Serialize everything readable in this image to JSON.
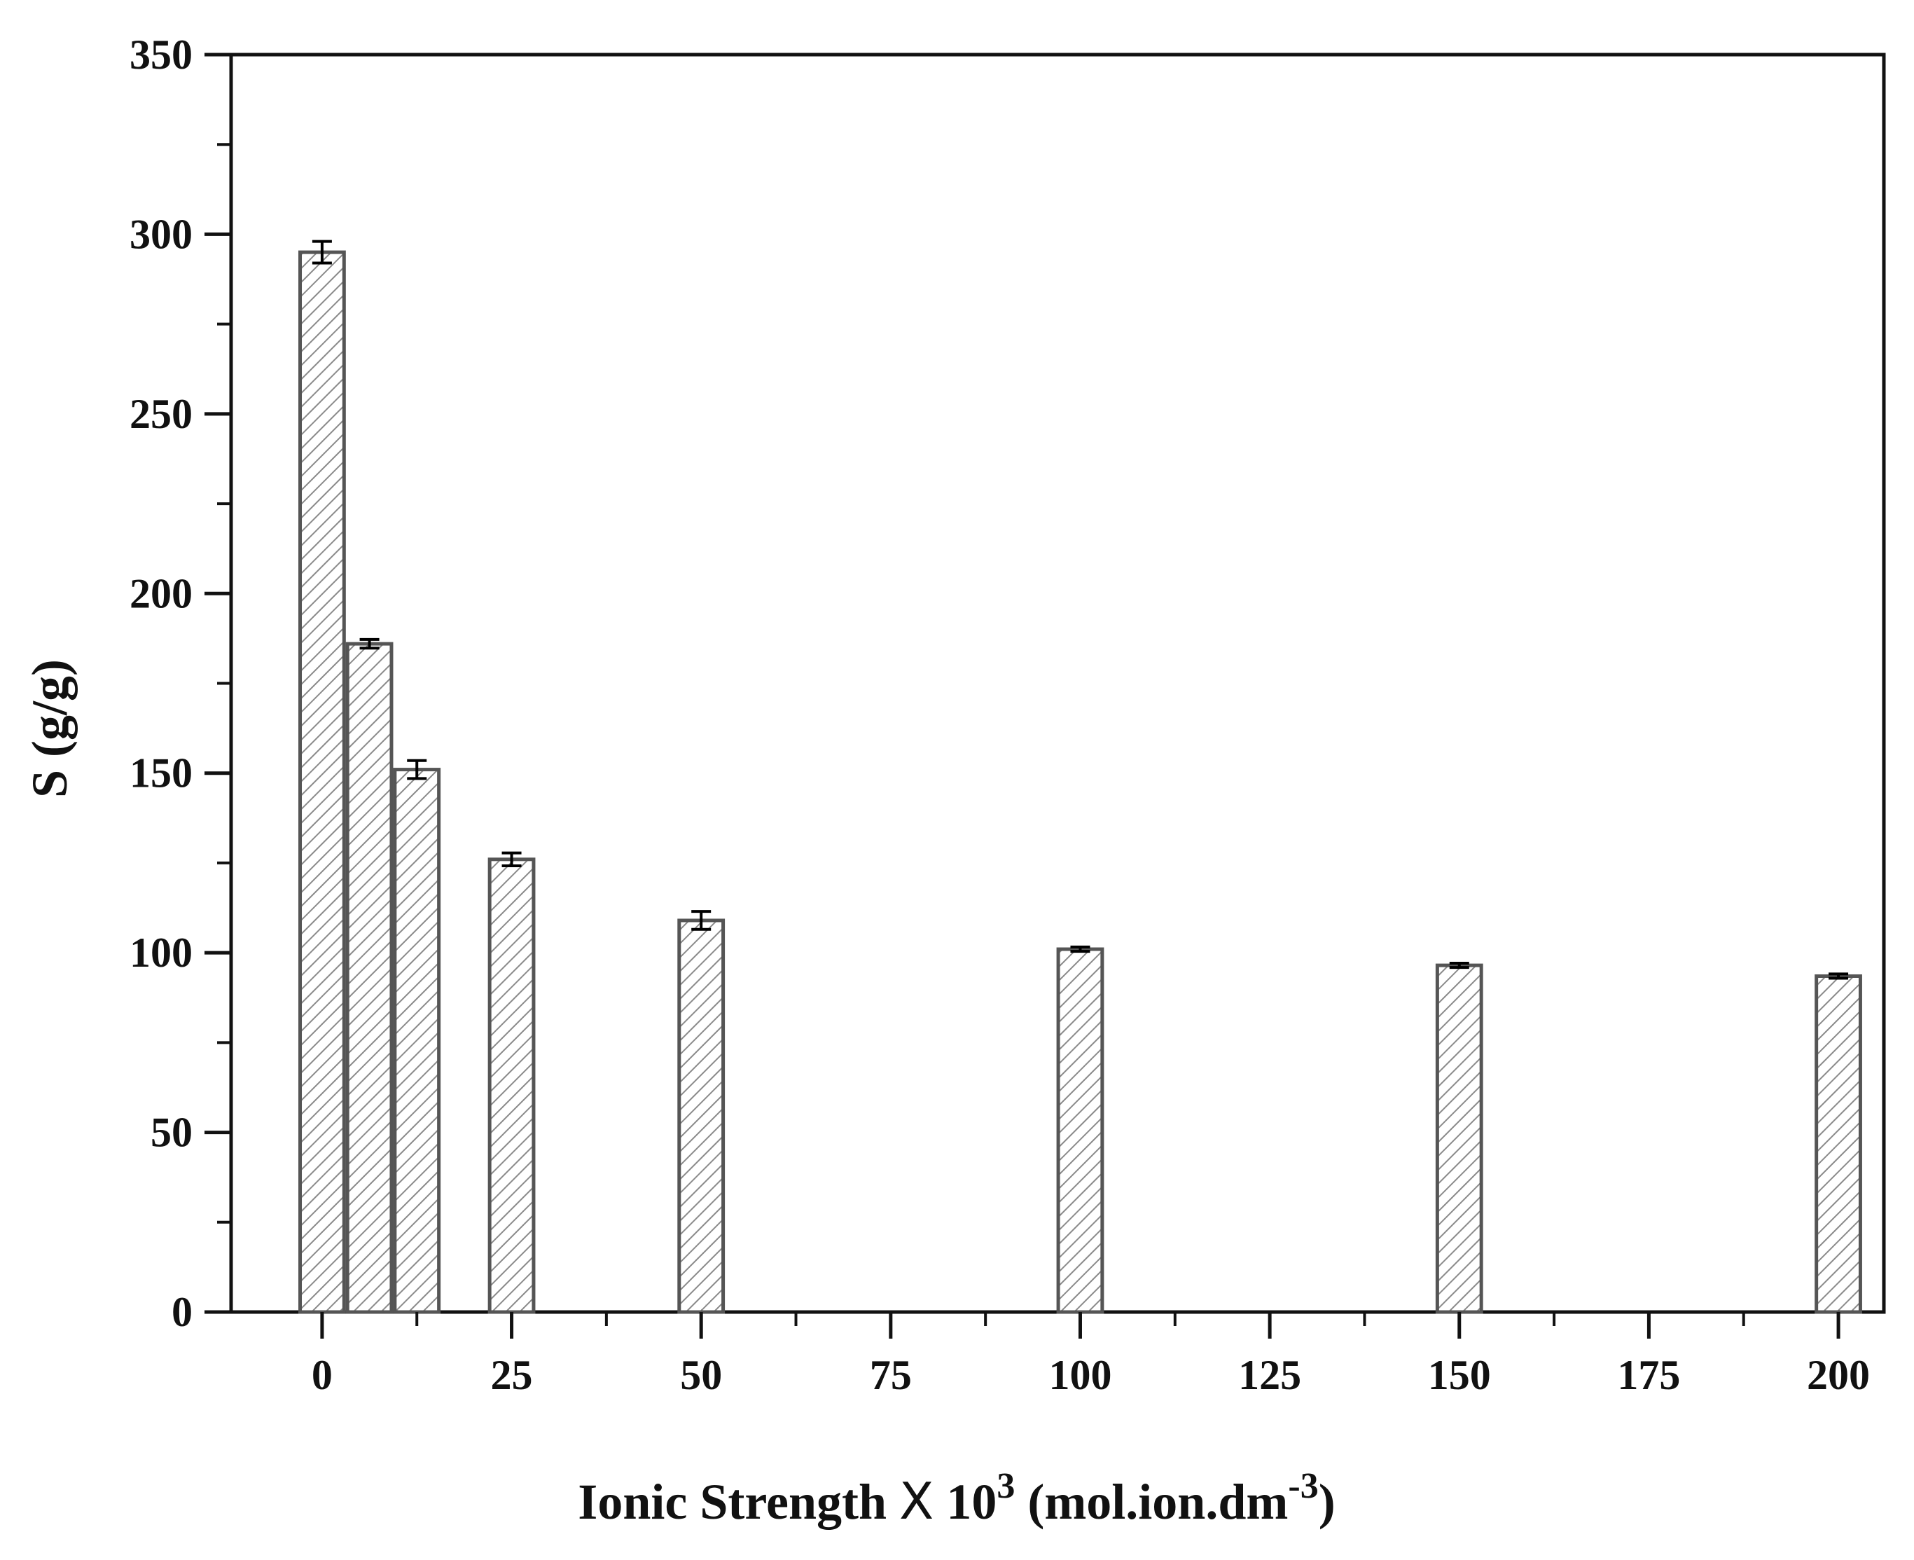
{
  "chart_data": {
    "type": "bar",
    "title": "",
    "xlabel": {
      "prefix": "Ionic Strength ",
      "times": "X",
      "base": " 10",
      "exp": "3",
      "unit_open": " (mol.ion.dm",
      "unit_exp": "-3",
      "unit_close": ")"
    },
    "ylabel": "S  (g/g)",
    "xlim": [
      -12,
      206
    ],
    "ylim": [
      0,
      350
    ],
    "x_ticks": [
      0,
      25,
      50,
      75,
      100,
      125,
      150,
      175,
      200
    ],
    "y_ticks": [
      0,
      50,
      100,
      150,
      200,
      250,
      300,
      350
    ],
    "grid": false,
    "legend": "none",
    "hatch": "diagonal",
    "bar_fill": "#ffffff",
    "bar_edge": "#555555",
    "hatch_color": "#8a8a8a",
    "errorbar_color": "#000000",
    "points": [
      {
        "x": 0,
        "value": 295,
        "error": 3
      },
      {
        "x": 6.25,
        "value": 186,
        "error": 1.2
      },
      {
        "x": 12.5,
        "value": 151,
        "error": 2.5
      },
      {
        "x": 25,
        "value": 126,
        "error": 1.8
      },
      {
        "x": 50,
        "value": 109,
        "error": 2.5
      },
      {
        "x": 100,
        "value": 101,
        "error": 0.6
      },
      {
        "x": 150,
        "value": 96.5,
        "error": 0.6
      },
      {
        "x": 200,
        "value": 93.5,
        "error": 0.6
      }
    ]
  }
}
